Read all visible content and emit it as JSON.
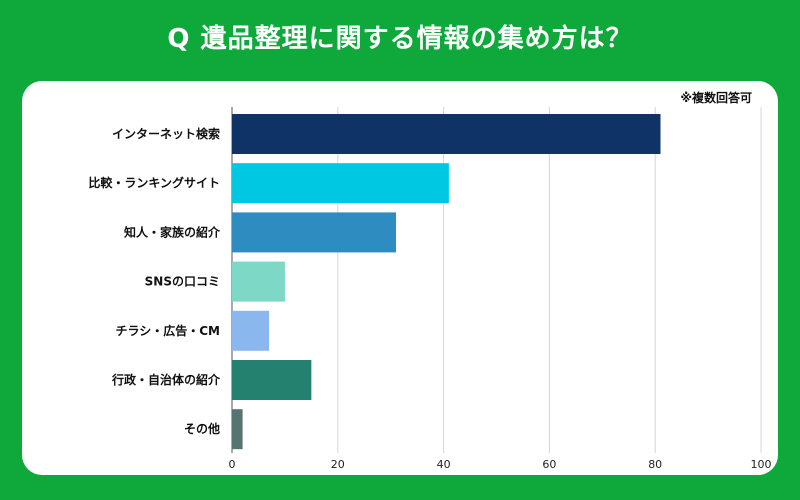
{
  "title": "Q 遺品整理に関する情報の集め方は？",
  "note": "※複数回答可",
  "chart_data": {
    "type": "bar",
    "orientation": "horizontal",
    "categories": [
      "インターネット検索",
      "比較・ランキングサイト",
      "知人・家族の紹介",
      "SNSの口コミ",
      "チラシ・広告・CM",
      "行政・自治体の紹介",
      "その他"
    ],
    "values": [
      81,
      41,
      31,
      10,
      7,
      15,
      2
    ],
    "colors": [
      "#0f3366",
      "#00c8e3",
      "#2e8cc0",
      "#7dd8c5",
      "#8ab8ee",
      "#24806f",
      "#567570"
    ],
    "xlim": [
      0,
      100
    ],
    "xticks": [
      0,
      20,
      40,
      60,
      80,
      100
    ],
    "grid": true,
    "legend": "none"
  }
}
